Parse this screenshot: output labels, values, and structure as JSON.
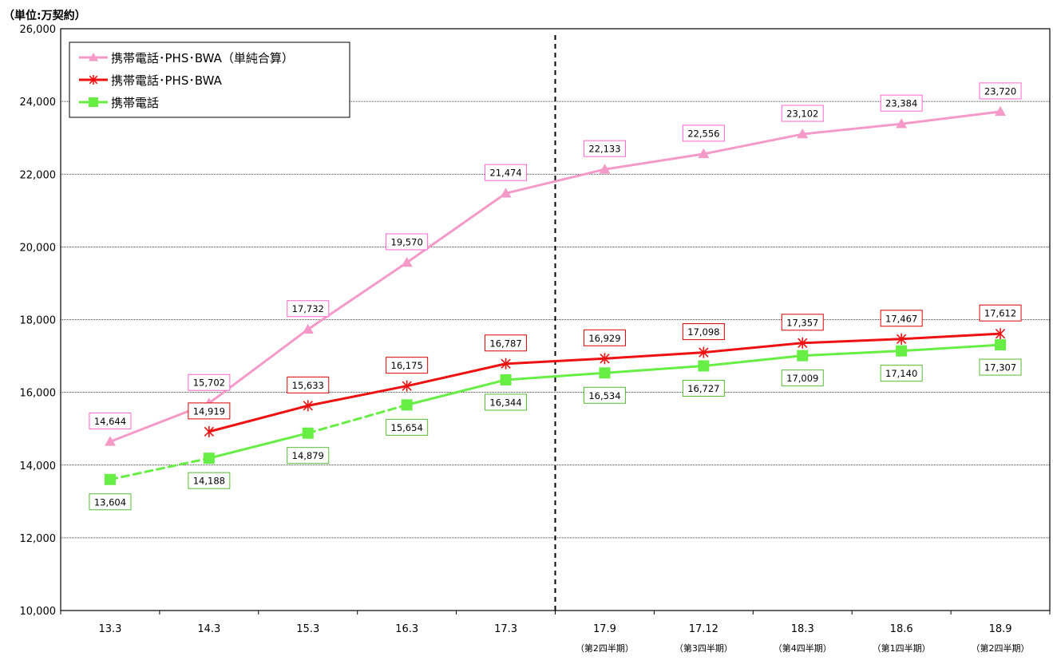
{
  "chart_data": {
    "type": "line",
    "unit_label": "（単位:万契約）",
    "ylim": [
      10000,
      26000
    ],
    "yticks": [
      "10,000",
      "12,000",
      "14,000",
      "16,000",
      "18,000",
      "20,000",
      "22,000",
      "24,000",
      "26,000"
    ],
    "ytick_values": [
      10000,
      12000,
      14000,
      16000,
      18000,
      20000,
      22000,
      24000,
      26000
    ],
    "grid": true,
    "legend_position": "top-left",
    "categories": [
      "13.3",
      "14.3",
      "15.3",
      "16.3",
      "17.3",
      "17.9",
      "17.12",
      "18.3",
      "18.6",
      "18.9"
    ],
    "category_subs": [
      "",
      "",
      "",
      "",
      "",
      "（第2四半期）",
      "（第3四半期）",
      "（第4四半期）",
      "（第1四半期）",
      "（第2四半期）"
    ],
    "divider_after_index": 4,
    "series": [
      {
        "name": "携帯電話･PHS･BWA（単純合算）",
        "color": "#f59ac8",
        "label_border": "#ff66cc",
        "marker": "triangle",
        "values": [
          14644,
          15702,
          17732,
          19570,
          21474,
          22133,
          22556,
          23102,
          23384,
          23720
        ],
        "labels": [
          "14,644",
          "15,702",
          "17,732",
          "19,570",
          "21,474",
          "22,133",
          "22,556",
          "23,102",
          "23,384",
          "23,720"
        ],
        "label_pos": "above",
        "dashed_segments": []
      },
      {
        "name": "携帯電話･PHS･BWA",
        "color": "#ee1111",
        "label_border": "#dd0000",
        "marker": "asterisk",
        "values": [
          null,
          14919,
          15633,
          16175,
          16787,
          16929,
          17098,
          17357,
          17467,
          17612
        ],
        "labels": [
          "",
          "14,919",
          "15,633",
          "16,175",
          "16,787",
          "16,929",
          "17,098",
          "17,357",
          "17,467",
          "17,612"
        ],
        "label_pos": "above",
        "dashed_segments": []
      },
      {
        "name": "携帯電話",
        "color": "#66ee44",
        "label_border": "#55bb33",
        "marker": "square",
        "values": [
          13604,
          14188,
          14879,
          15654,
          16344,
          16534,
          16727,
          17009,
          17140,
          17307
        ],
        "labels": [
          "13,604",
          "14,188",
          "14,879",
          "15,654",
          "16,344",
          "16,534",
          "16,727",
          "17,009",
          "17,140",
          "17,307"
        ],
        "label_pos": "below",
        "dashed_segments": [
          0,
          2
        ]
      }
    ]
  }
}
